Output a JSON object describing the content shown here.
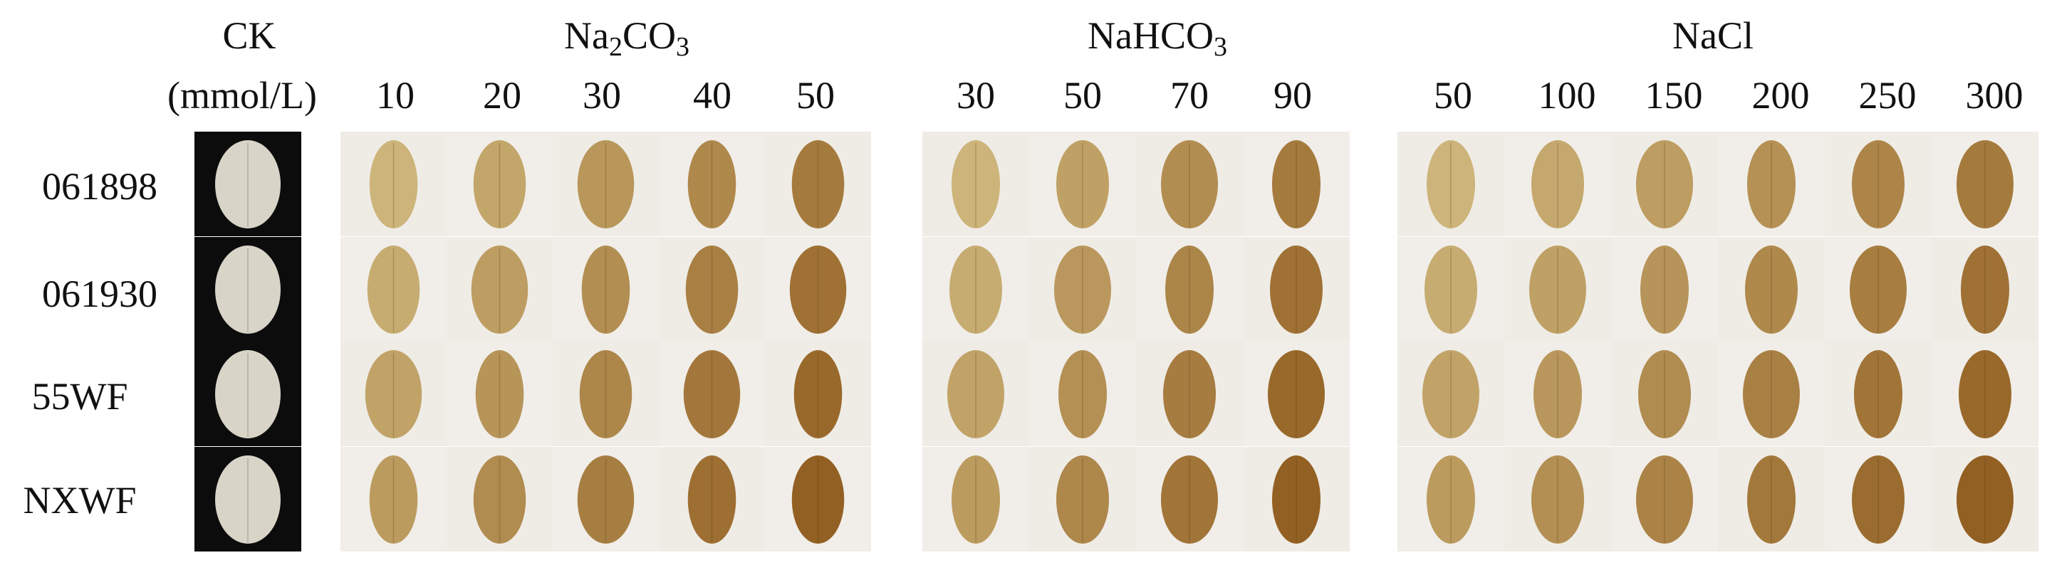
{
  "headers": {
    "ck": "CK",
    "units": "(mmol/L)",
    "na2co3": {
      "pre": "Na",
      "sub1": "2",
      "mid": "CO",
      "sub2": "3"
    },
    "nahco3": {
      "pre": "NaHCO",
      "sub": "3"
    },
    "nacl": "NaCl"
  },
  "concentrations": {
    "na2co3": [
      "10",
      "20",
      "30",
      "40",
      "50"
    ],
    "nahco3": [
      "30",
      "50",
      "70",
      "90"
    ],
    "nacl": [
      "50",
      "100",
      "150",
      "200",
      "250",
      "300"
    ]
  },
  "rows": [
    "061898",
    "061930",
    "55WF",
    "NXWF"
  ],
  "colors": {
    "ck_background": "#0c0c0c",
    "ck_leaf": "#d9d4c8",
    "photo_background": "#efece6",
    "leaf_light": "#d8c48a",
    "leaf_dark": "#8f5a1c"
  }
}
